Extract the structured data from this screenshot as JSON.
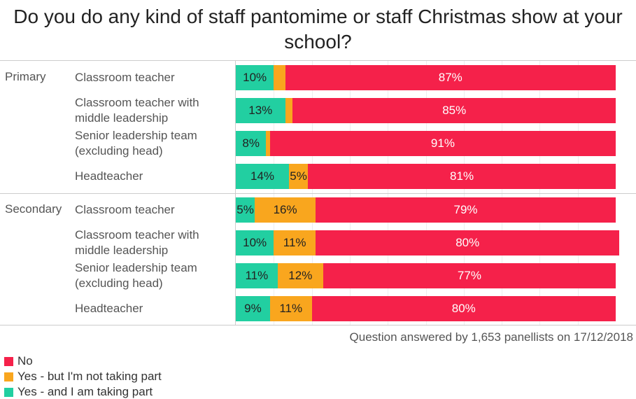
{
  "chart_data": {
    "type": "bar",
    "stacked": true,
    "orientation": "horizontal",
    "title": "Do you do any kind of staff pantomime or staff Christmas show at your school?",
    "groups": [
      {
        "name": "Primary",
        "rows": [
          {
            "label": "Classroom teacher",
            "values": [
              10,
              3,
              87
            ]
          },
          {
            "label": "Classroom teacher with middle leadership",
            "values": [
              13,
              2,
              85
            ]
          },
          {
            "label": "Senior leadership team (excluding head)",
            "values": [
              8,
              1,
              91
            ]
          },
          {
            "label": "Headteacher",
            "values": [
              14,
              5,
              81
            ]
          }
        ]
      },
      {
        "name": "Secondary",
        "rows": [
          {
            "label": "Classroom teacher",
            "values": [
              5,
              16,
              79
            ]
          },
          {
            "label": "Classroom teacher with middle leadership",
            "values": [
              10,
              11,
              80
            ]
          },
          {
            "label": "Senior leadership team (excluding head)",
            "values": [
              11,
              12,
              77
            ]
          },
          {
            "label": "Headteacher",
            "values": [
              9,
              11,
              80
            ]
          }
        ]
      }
    ],
    "series": [
      {
        "name": "Yes - and I am taking part",
        "color": "#22cfa1",
        "text": "#222"
      },
      {
        "name": "Yes - but I'm not taking part",
        "color": "#f9a61e",
        "text": "#222"
      },
      {
        "name": "No",
        "color": "#f5214a",
        "text": "#fff"
      }
    ],
    "xlim": [
      0,
      100
    ],
    "label_min": 4,
    "note": "Question answered by 1,653 panellists on 17/12/2018",
    "legend": [
      "No",
      "Yes - but I'm not taking part",
      "Yes - and I am taking part"
    ]
  }
}
